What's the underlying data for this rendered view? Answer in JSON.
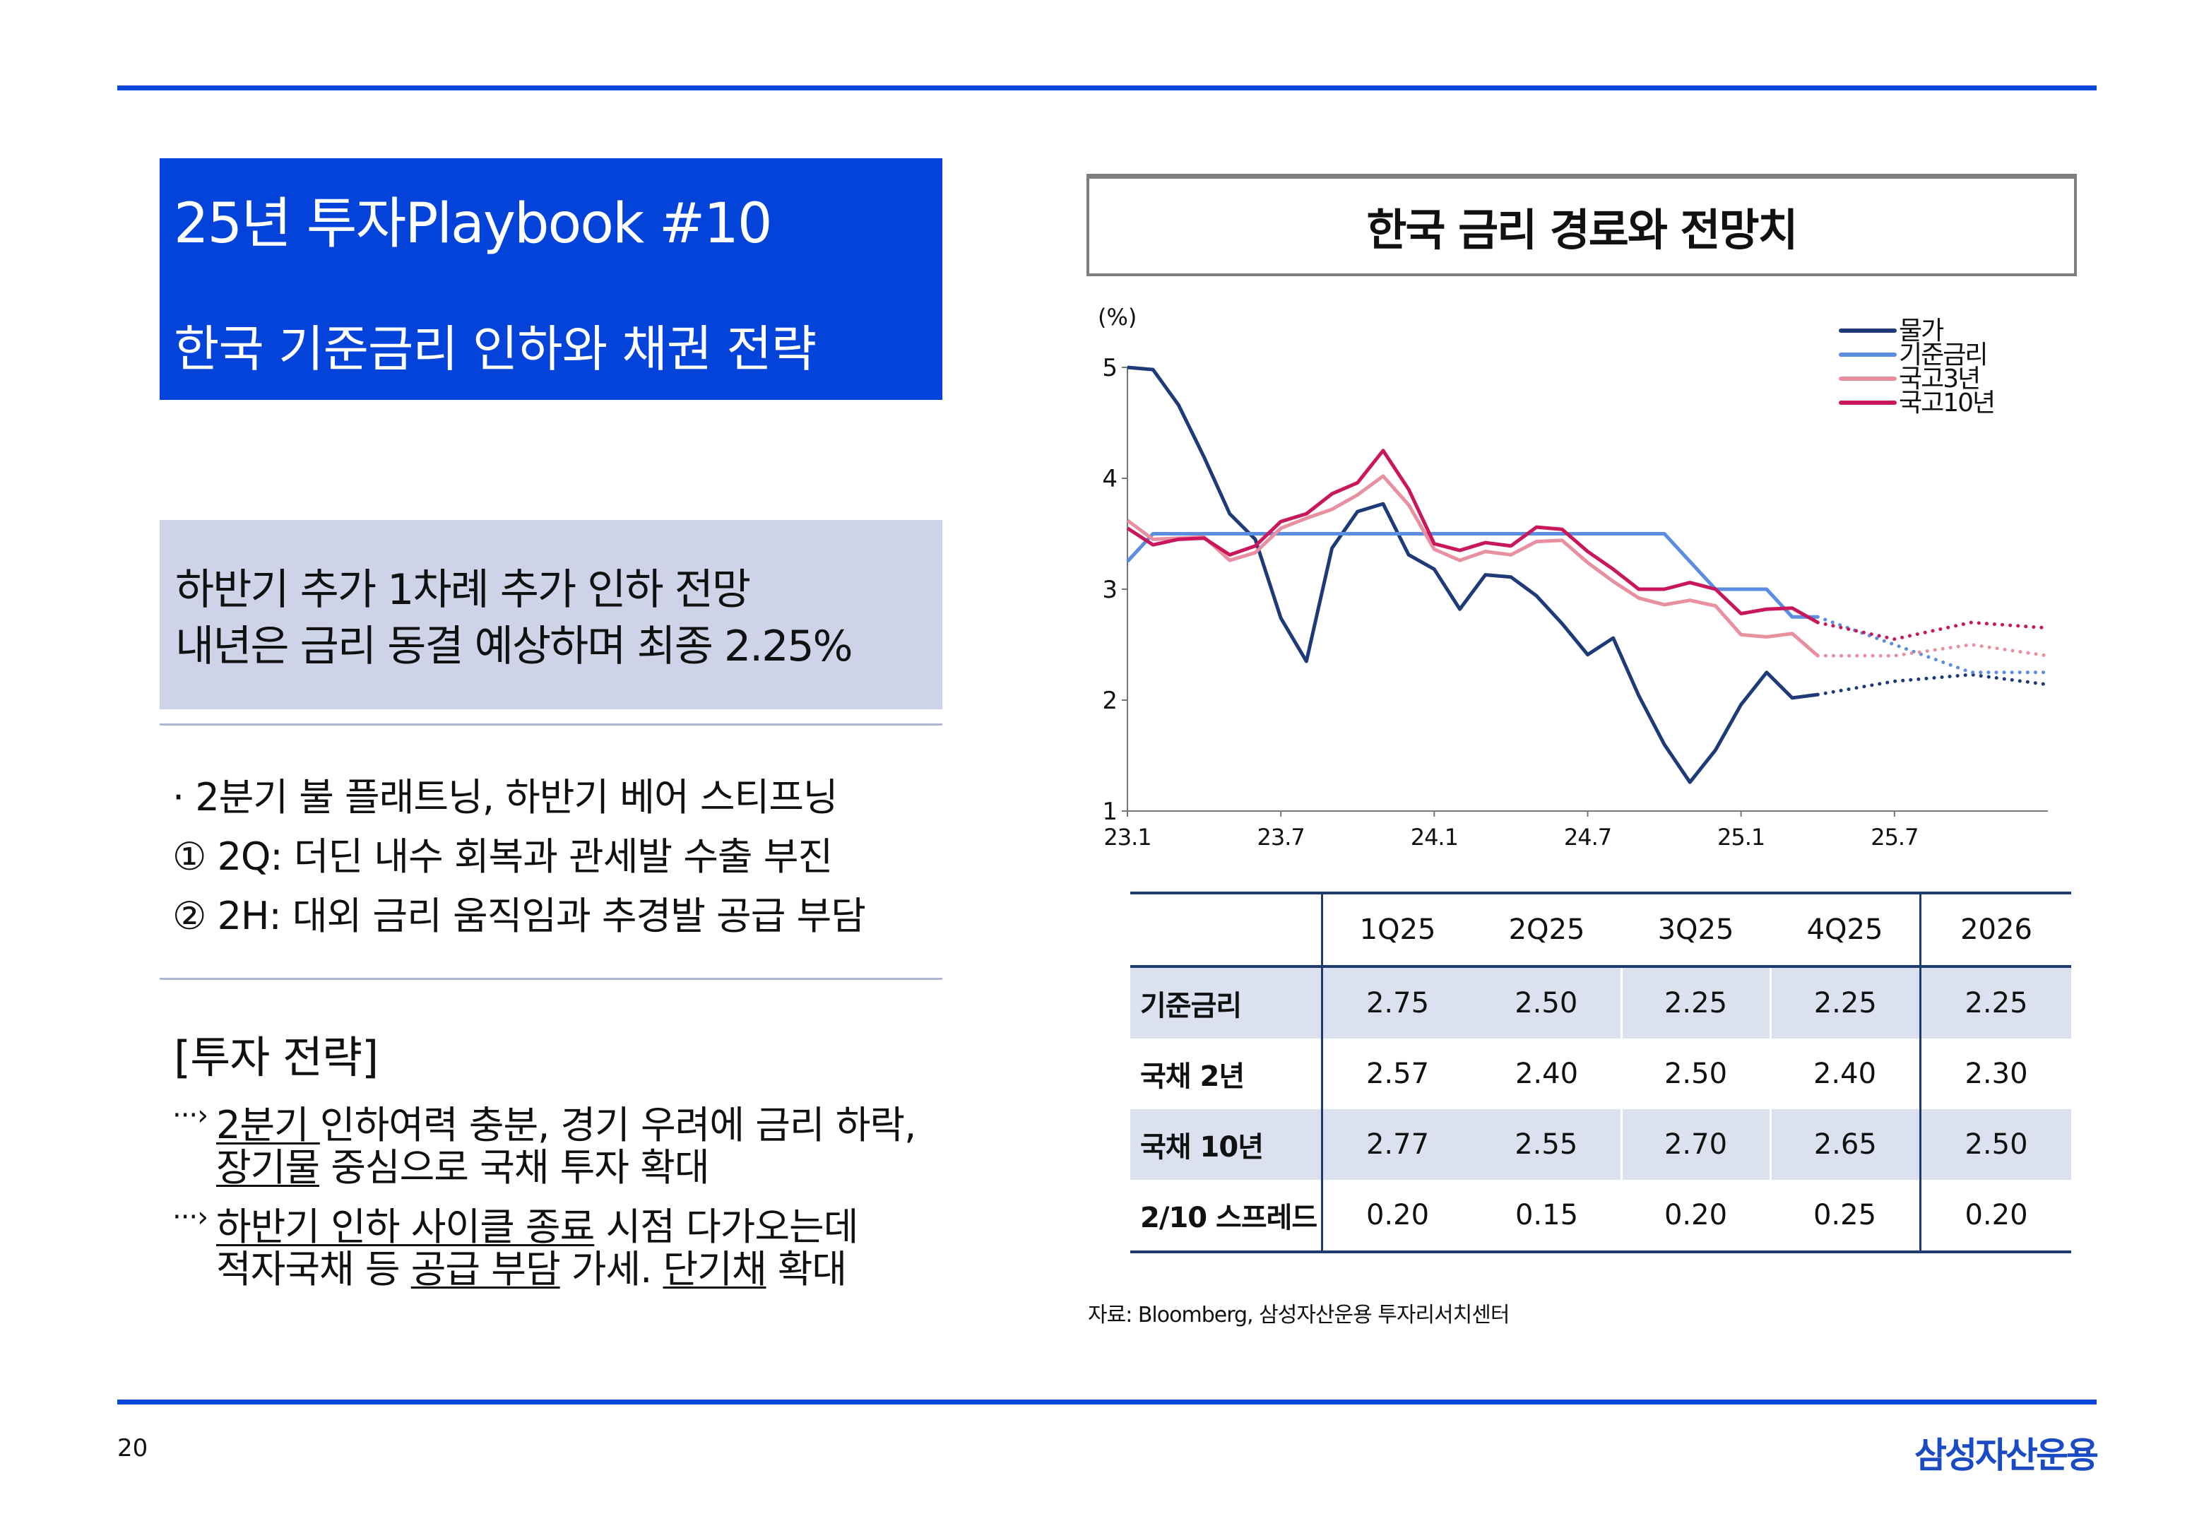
{
  "header": {
    "title": "25년 투자Playbook #10",
    "subtitle": "한국 기준금리 인하와 채권 전략"
  },
  "summary": {
    "line1": "하반기 추가 1차례 추가 인하 전망",
    "line2": "내년은 금리 동결 예상하며 최종 2.25%"
  },
  "bullets": [
    "· 2분기 불 플래트닝, 하반기 베어 스티프닝",
    "① 2Q: 더딘 내수 회복과 관세발 수출 부진",
    "② 2H: 대외 금리 움직임과 추경발 공급 부담"
  ],
  "strategy": {
    "heading": "[투자 전략]",
    "arrow": "···›",
    "items": [
      {
        "lines": [
          [
            {
              "t": "2분기 ",
              "u": true
            },
            {
              "t": "인하여력 충분, 경기 우려에 금리 하락,",
              "u": false
            }
          ],
          [
            {
              "t": "장기물",
              "u": true
            },
            {
              "t": " 중심으로 국채 투자 확대",
              "u": false
            }
          ]
        ]
      },
      {
        "lines": [
          [
            {
              "t": "하반기 인하 사이클 종료",
              "u": true
            },
            {
              "t": " 시점 다가오는데",
              "u": false
            }
          ],
          [
            {
              "t": "적자국채 등 ",
              "u": false
            },
            {
              "t": "공급 부담",
              "u": true
            },
            {
              "t": " 가세. ",
              "u": false
            },
            {
              "t": "단기채",
              "u": true
            },
            {
              "t": " 확대",
              "u": false
            }
          ]
        ]
      }
    ]
  },
  "chart_data": {
    "type": "line",
    "title": "한국 금리 경로와 전망치",
    "ylabel": "(%)",
    "ylim": [
      1,
      5
    ],
    "yticks": [
      "1",
      "2",
      "3",
      "4",
      "5"
    ],
    "xticks": [
      "23.1",
      "23.7",
      "24.1",
      "24.7",
      "25.1",
      "25.7"
    ],
    "x": [
      "23.1",
      "23.2",
      "23.3",
      "23.4",
      "23.5",
      "23.6",
      "23.7",
      "23.8",
      "23.9",
      "23.10",
      "23.11",
      "23.12",
      "24.1",
      "24.2",
      "24.3",
      "24.4",
      "24.5",
      "24.6",
      "24.7",
      "24.8",
      "24.9",
      "24.10",
      "24.11",
      "24.12",
      "25.1",
      "25.2",
      "25.3",
      "25.4"
    ],
    "x_end": "26.1",
    "legend": "top-right",
    "series": [
      {
        "name": "물가",
        "color": "#1F3A78",
        "values": [
          5.0,
          4.98,
          4.66,
          4.19,
          3.68,
          3.45,
          2.74,
          2.35,
          3.37,
          3.7,
          3.77,
          3.31,
          3.18,
          2.82,
          3.13,
          3.11,
          2.94,
          2.69,
          2.41,
          2.56,
          2.04,
          1.6,
          1.26,
          1.55,
          1.96,
          2.25,
          2.02,
          2.05
        ],
        "forecast": {
          "x": [
            "25.4",
            "25.7",
            "25.10",
            "26.1"
          ],
          "values": [
            2.05,
            2.17,
            2.23,
            2.14
          ]
        }
      },
      {
        "name": "기준금리",
        "color": "#5B8DE0",
        "values": [
          3.25,
          3.5,
          3.5,
          3.5,
          3.5,
          3.5,
          3.5,
          3.5,
          3.5,
          3.5,
          3.5,
          3.5,
          3.5,
          3.5,
          3.5,
          3.5,
          3.5,
          3.5,
          3.5,
          3.5,
          3.5,
          3.5,
          3.25,
          3.0,
          3.0,
          3.0,
          2.75,
          2.75
        ],
        "forecast": {
          "x": [
            "25.4",
            "25.7",
            "25.10",
            "26.1"
          ],
          "values": [
            2.75,
            2.5,
            2.25,
            2.25
          ]
        }
      },
      {
        "name": "국고3년",
        "color": "#E8909F",
        "values": [
          3.62,
          3.45,
          3.46,
          3.47,
          3.26,
          3.33,
          3.55,
          3.64,
          3.72,
          3.85,
          4.02,
          3.76,
          3.36,
          3.26,
          3.34,
          3.31,
          3.43,
          3.44,
          3.24,
          3.07,
          2.92,
          2.86,
          2.9,
          2.85,
          2.59,
          2.57,
          2.6,
          2.4
        ],
        "forecast": {
          "x": [
            "25.4",
            "25.7",
            "25.10",
            "26.1"
          ],
          "values": [
            2.4,
            2.4,
            2.5,
            2.4
          ]
        }
      },
      {
        "name": "국고10년",
        "color": "#C8175A",
        "values": [
          3.55,
          3.4,
          3.45,
          3.46,
          3.31,
          3.39,
          3.61,
          3.68,
          3.86,
          3.96,
          4.25,
          3.9,
          3.41,
          3.35,
          3.42,
          3.39,
          3.56,
          3.54,
          3.34,
          3.18,
          3.0,
          3.0,
          3.06,
          3.0,
          2.78,
          2.82,
          2.83,
          2.7
        ],
        "forecast": {
          "x": [
            "25.4",
            "25.7",
            "25.10",
            "26.1"
          ],
          "values": [
            2.7,
            2.55,
            2.7,
            2.65
          ]
        }
      }
    ]
  },
  "table": {
    "columns": [
      "",
      "1Q25",
      "2Q25",
      "3Q25",
      "4Q25",
      "2026"
    ],
    "rows": [
      {
        "label": "기준금리",
        "values": [
          "2.75",
          "2.50",
          "2.25",
          "2.25",
          "2.25"
        ]
      },
      {
        "label": "국채 2년",
        "values": [
          "2.57",
          "2.40",
          "2.50",
          "2.40",
          "2.30"
        ]
      },
      {
        "label": "국채 10년",
        "values": [
          "2.77",
          "2.55",
          "2.70",
          "2.65",
          "2.50"
        ]
      },
      {
        "label": "2/10 스프레드",
        "values": [
          "0.20",
          "0.15",
          "0.20",
          "0.25",
          "0.20"
        ]
      }
    ],
    "line_color": "#1F3A6E",
    "shade_color": "#DCE1F0"
  },
  "source": "자료: Bloomberg, 삼성자산운용 투자리서치센터",
  "footer": {
    "page": "20",
    "logo": "삼성자산운용"
  },
  "colors": {
    "brand_blue": "#0343DA",
    "summary_bg": "#CFD3E8"
  }
}
